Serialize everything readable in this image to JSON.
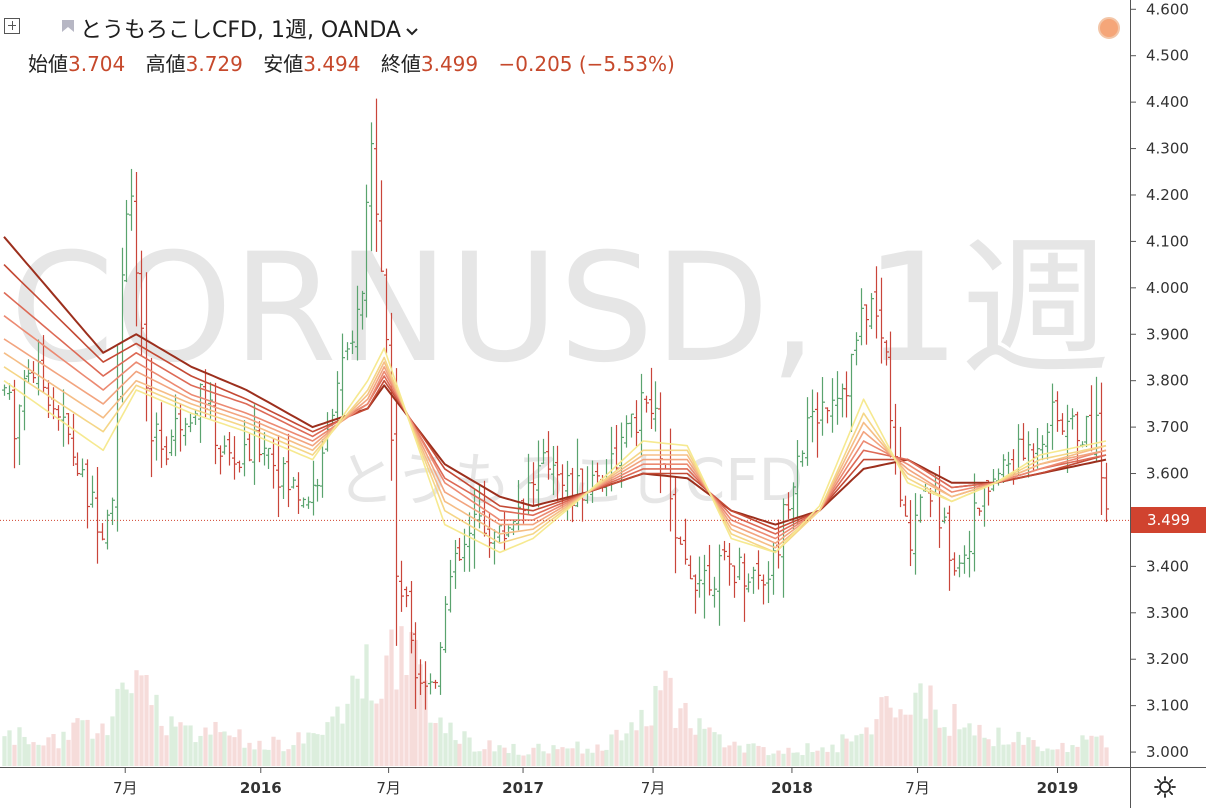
{
  "header": {
    "symbol_name": "とうもろこしCFD, 1週, OANDA",
    "open_label": "始値",
    "open_value": "3.704",
    "high_label": "高値",
    "high_value": "3.729",
    "low_label": "安値",
    "low_value": "3.494",
    "close_label": "終値",
    "close_value": "3.499",
    "change": "−0.205 (−5.53%)"
  },
  "watermark": {
    "main": "CORNUSD, 1週",
    "sub": "とうもろこしCFD"
  },
  "last_price_label": "3.499",
  "colors": {
    "up": "#5aa36e",
    "down": "#c9453a",
    "accent": "#d0432f",
    "vol_up": "#dceedd",
    "vol_down": "#f6dcda"
  },
  "icons": {
    "add": "plus-box-icon",
    "flag": "flag-icon",
    "status": "status-dot-icon",
    "settings": "gear-icon",
    "dropdown": "chevron-down-icon"
  },
  "chart_data": {
    "type": "candlestick",
    "timeframe": "1週",
    "ylim": [
      2.97,
      4.62
    ],
    "yticks": [
      "4.600",
      "4.500",
      "4.400",
      "4.300",
      "4.200",
      "4.100",
      "4.000",
      "3.900",
      "3.800",
      "3.700",
      "3.600",
      "3.500",
      "3.400",
      "3.300",
      "3.200",
      "3.100",
      "3.000"
    ],
    "xticks": [
      {
        "label": "7月",
        "t": 0.11
      },
      {
        "label": "2016",
        "t": 0.233,
        "bold": true
      },
      {
        "label": "7月",
        "t": 0.349
      },
      {
        "label": "2017",
        "t": 0.471,
        "bold": true
      },
      {
        "label": "7月",
        "t": 0.589
      },
      {
        "label": "2018",
        "t": 0.715,
        "bold": true
      },
      {
        "label": "7月",
        "t": 0.829
      },
      {
        "label": "2019",
        "t": 0.956,
        "bold": true
      }
    ],
    "last_price": 3.499,
    "price_anchors": [
      [
        0.0,
        3.78
      ],
      [
        0.01,
        3.7
      ],
      [
        0.02,
        3.84
      ],
      [
        0.04,
        3.78
      ],
      [
        0.06,
        3.66
      ],
      [
        0.075,
        3.55
      ],
      [
        0.09,
        3.49
      ],
      [
        0.1,
        3.6
      ],
      [
        0.108,
        4.1
      ],
      [
        0.114,
        4.28
      ],
      [
        0.12,
        4.0
      ],
      [
        0.13,
        3.72
      ],
      [
        0.145,
        3.65
      ],
      [
        0.16,
        3.72
      ],
      [
        0.18,
        3.78
      ],
      [
        0.195,
        3.65
      ],
      [
        0.215,
        3.62
      ],
      [
        0.235,
        3.68
      ],
      [
        0.255,
        3.58
      ],
      [
        0.275,
        3.55
      ],
      [
        0.29,
        3.62
      ],
      [
        0.3,
        3.8
      ],
      [
        0.315,
        3.86
      ],
      [
        0.325,
        4.0
      ],
      [
        0.333,
        4.3
      ],
      [
        0.34,
        4.15
      ],
      [
        0.35,
        3.75
      ],
      [
        0.355,
        3.4
      ],
      [
        0.365,
        3.3
      ],
      [
        0.375,
        3.18
      ],
      [
        0.385,
        3.15
      ],
      [
        0.39,
        3.13
      ],
      [
        0.4,
        3.35
      ],
      [
        0.415,
        3.42
      ],
      [
        0.43,
        3.5
      ],
      [
        0.45,
        3.46
      ],
      [
        0.47,
        3.55
      ],
      [
        0.485,
        3.6
      ],
      [
        0.5,
        3.64
      ],
      [
        0.515,
        3.55
      ],
      [
        0.53,
        3.58
      ],
      [
        0.55,
        3.62
      ],
      [
        0.57,
        3.7
      ],
      [
        0.58,
        3.75
      ],
      [
        0.59,
        3.72
      ],
      [
        0.6,
        3.6
      ],
      [
        0.61,
        3.42
      ],
      [
        0.63,
        3.38
      ],
      [
        0.66,
        3.4
      ],
      [
        0.69,
        3.38
      ],
      [
        0.7,
        3.42
      ],
      [
        0.71,
        3.55
      ],
      [
        0.72,
        3.65
      ],
      [
        0.735,
        3.72
      ],
      [
        0.75,
        3.78
      ],
      [
        0.765,
        3.8
      ],
      [
        0.775,
        3.9
      ],
      [
        0.785,
        3.98
      ],
      [
        0.8,
        3.85
      ],
      [
        0.81,
        3.58
      ],
      [
        0.82,
        3.45
      ],
      [
        0.835,
        3.6
      ],
      [
        0.85,
        3.5
      ],
      [
        0.865,
        3.4
      ],
      [
        0.88,
        3.5
      ],
      [
        0.895,
        3.58
      ],
      [
        0.91,
        3.62
      ],
      [
        0.93,
        3.65
      ],
      [
        0.95,
        3.72
      ],
      [
        0.97,
        3.7
      ],
      [
        0.985,
        3.68
      ],
      [
        0.992,
        3.72
      ],
      [
        1.0,
        3.5
      ]
    ],
    "ribbon_ma_anchors": [
      [
        [
          0,
          4.11
        ],
        [
          0.09,
          3.86
        ],
        [
          0.12,
          3.9
        ],
        [
          0.17,
          3.83
        ],
        [
          0.22,
          3.78
        ],
        [
          0.28,
          3.7
        ],
        [
          0.33,
          3.74
        ],
        [
          0.345,
          3.79
        ],
        [
          0.4,
          3.62
        ],
        [
          0.45,
          3.55
        ],
        [
          0.48,
          3.53
        ],
        [
          0.53,
          3.56
        ],
        [
          0.58,
          3.6
        ],
        [
          0.62,
          3.59
        ],
        [
          0.66,
          3.52
        ],
        [
          0.7,
          3.49
        ],
        [
          0.74,
          3.52
        ],
        [
          0.78,
          3.61
        ],
        [
          0.82,
          3.63
        ],
        [
          0.86,
          3.58
        ],
        [
          0.9,
          3.58
        ],
        [
          0.94,
          3.6
        ],
        [
          1.0,
          3.63
        ]
      ],
      [
        [
          0,
          4.05
        ],
        [
          0.09,
          3.84
        ],
        [
          0.12,
          3.88
        ],
        [
          0.17,
          3.81
        ],
        [
          0.22,
          3.76
        ],
        [
          0.28,
          3.69
        ],
        [
          0.33,
          3.74
        ],
        [
          0.345,
          3.8
        ],
        [
          0.4,
          3.61
        ],
        [
          0.45,
          3.53
        ],
        [
          0.48,
          3.52
        ],
        [
          0.53,
          3.56
        ],
        [
          0.58,
          3.6
        ],
        [
          0.62,
          3.6
        ],
        [
          0.66,
          3.52
        ],
        [
          0.7,
          3.48
        ],
        [
          0.74,
          3.52
        ],
        [
          0.78,
          3.63
        ],
        [
          0.82,
          3.63
        ],
        [
          0.86,
          3.57
        ],
        [
          0.9,
          3.58
        ],
        [
          0.94,
          3.6
        ],
        [
          1.0,
          3.64
        ]
      ],
      [
        [
          0,
          3.99
        ],
        [
          0.09,
          3.81
        ],
        [
          0.12,
          3.86
        ],
        [
          0.17,
          3.79
        ],
        [
          0.22,
          3.75
        ],
        [
          0.28,
          3.68
        ],
        [
          0.33,
          3.75
        ],
        [
          0.345,
          3.81
        ],
        [
          0.4,
          3.59
        ],
        [
          0.45,
          3.52
        ],
        [
          0.48,
          3.51
        ],
        [
          0.53,
          3.56
        ],
        [
          0.58,
          3.61
        ],
        [
          0.62,
          3.61
        ],
        [
          0.66,
          3.51
        ],
        [
          0.7,
          3.47
        ],
        [
          0.74,
          3.52
        ],
        [
          0.78,
          3.65
        ],
        [
          0.82,
          3.63
        ],
        [
          0.86,
          3.57
        ],
        [
          0.9,
          3.58
        ],
        [
          0.94,
          3.61
        ],
        [
          1.0,
          3.64
        ]
      ],
      [
        [
          0,
          3.94
        ],
        [
          0.09,
          3.78
        ],
        [
          0.12,
          3.84
        ],
        [
          0.17,
          3.77
        ],
        [
          0.22,
          3.73
        ],
        [
          0.28,
          3.67
        ],
        [
          0.33,
          3.75
        ],
        [
          0.345,
          3.82
        ],
        [
          0.4,
          3.58
        ],
        [
          0.45,
          3.5
        ],
        [
          0.48,
          3.5
        ],
        [
          0.53,
          3.56
        ],
        [
          0.58,
          3.62
        ],
        [
          0.62,
          3.62
        ],
        [
          0.66,
          3.5
        ],
        [
          0.7,
          3.46
        ],
        [
          0.74,
          3.52
        ],
        [
          0.78,
          3.67
        ],
        [
          0.82,
          3.62
        ],
        [
          0.86,
          3.56
        ],
        [
          0.9,
          3.58
        ],
        [
          0.94,
          3.61
        ],
        [
          1.0,
          3.65
        ]
      ],
      [
        [
          0,
          3.89
        ],
        [
          0.09,
          3.75
        ],
        [
          0.12,
          3.82
        ],
        [
          0.17,
          3.76
        ],
        [
          0.22,
          3.72
        ],
        [
          0.28,
          3.66
        ],
        [
          0.33,
          3.76
        ],
        [
          0.345,
          3.83
        ],
        [
          0.4,
          3.56
        ],
        [
          0.45,
          3.49
        ],
        [
          0.48,
          3.49
        ],
        [
          0.53,
          3.56
        ],
        [
          0.58,
          3.63
        ],
        [
          0.62,
          3.63
        ],
        [
          0.66,
          3.49
        ],
        [
          0.7,
          3.45
        ],
        [
          0.74,
          3.52
        ],
        [
          0.78,
          3.69
        ],
        [
          0.82,
          3.61
        ],
        [
          0.86,
          3.55
        ],
        [
          0.9,
          3.58
        ],
        [
          0.94,
          3.62
        ],
        [
          1.0,
          3.65
        ]
      ],
      [
        [
          0,
          3.86
        ],
        [
          0.09,
          3.72
        ],
        [
          0.12,
          3.8
        ],
        [
          0.17,
          3.75
        ],
        [
          0.22,
          3.71
        ],
        [
          0.28,
          3.65
        ],
        [
          0.33,
          3.77
        ],
        [
          0.345,
          3.84
        ],
        [
          0.4,
          3.54
        ],
        [
          0.45,
          3.47
        ],
        [
          0.48,
          3.48
        ],
        [
          0.53,
          3.56
        ],
        [
          0.58,
          3.64
        ],
        [
          0.62,
          3.64
        ],
        [
          0.66,
          3.48
        ],
        [
          0.7,
          3.44
        ],
        [
          0.74,
          3.52
        ],
        [
          0.78,
          3.71
        ],
        [
          0.82,
          3.6
        ],
        [
          0.86,
          3.55
        ],
        [
          0.9,
          3.58
        ],
        [
          0.94,
          3.62
        ],
        [
          1.0,
          3.66
        ]
      ],
      [
        [
          0,
          3.83
        ],
        [
          0.09,
          3.69
        ],
        [
          0.12,
          3.79
        ],
        [
          0.17,
          3.74
        ],
        [
          0.22,
          3.7
        ],
        [
          0.28,
          3.64
        ],
        [
          0.33,
          3.78
        ],
        [
          0.345,
          3.85
        ],
        [
          0.4,
          3.52
        ],
        [
          0.45,
          3.45
        ],
        [
          0.48,
          3.47
        ],
        [
          0.53,
          3.56
        ],
        [
          0.58,
          3.65
        ],
        [
          0.62,
          3.65
        ],
        [
          0.66,
          3.47
        ],
        [
          0.7,
          3.43
        ],
        [
          0.74,
          3.52
        ],
        [
          0.78,
          3.73
        ],
        [
          0.82,
          3.59
        ],
        [
          0.86,
          3.54
        ],
        [
          0.9,
          3.58
        ],
        [
          0.94,
          3.63
        ],
        [
          1.0,
          3.66
        ]
      ],
      [
        [
          0,
          3.8
        ],
        [
          0.09,
          3.65
        ],
        [
          0.12,
          3.78
        ],
        [
          0.17,
          3.73
        ],
        [
          0.22,
          3.69
        ],
        [
          0.28,
          3.63
        ],
        [
          0.33,
          3.8
        ],
        [
          0.345,
          3.87
        ],
        [
          0.4,
          3.49
        ],
        [
          0.45,
          3.43
        ],
        [
          0.48,
          3.46
        ],
        [
          0.53,
          3.56
        ],
        [
          0.58,
          3.67
        ],
        [
          0.62,
          3.66
        ],
        [
          0.66,
          3.46
        ],
        [
          0.7,
          3.43
        ],
        [
          0.74,
          3.53
        ],
        [
          0.78,
          3.76
        ],
        [
          0.82,
          3.58
        ],
        [
          0.86,
          3.54
        ],
        [
          0.9,
          3.58
        ],
        [
          0.94,
          3.64
        ],
        [
          1.0,
          3.67
        ]
      ]
    ],
    "volume_profile": [
      [
        0,
        0.3
      ],
      [
        0.05,
        0.25
      ],
      [
        0.1,
        0.55
      ],
      [
        0.12,
        0.85
      ],
      [
        0.15,
        0.45
      ],
      [
        0.2,
        0.3
      ],
      [
        0.25,
        0.22
      ],
      [
        0.28,
        0.28
      ],
      [
        0.3,
        0.55
      ],
      [
        0.32,
        0.8
      ],
      [
        0.34,
        1.05
      ],
      [
        0.355,
        1.25
      ],
      [
        0.37,
        1.0
      ],
      [
        0.39,
        0.55
      ],
      [
        0.42,
        0.25
      ],
      [
        0.47,
        0.15
      ],
      [
        0.5,
        0.18
      ],
      [
        0.55,
        0.22
      ],
      [
        0.58,
        0.55
      ],
      [
        0.6,
        0.75
      ],
      [
        0.62,
        0.45
      ],
      [
        0.66,
        0.2
      ],
      [
        0.7,
        0.15
      ],
      [
        0.74,
        0.18
      ],
      [
        0.78,
        0.3
      ],
      [
        0.81,
        0.7
      ],
      [
        0.83,
        0.65
      ],
      [
        0.85,
        0.55
      ],
      [
        0.88,
        0.35
      ],
      [
        0.92,
        0.25
      ],
      [
        0.96,
        0.18
      ],
      [
        1.0,
        0.3
      ]
    ]
  }
}
